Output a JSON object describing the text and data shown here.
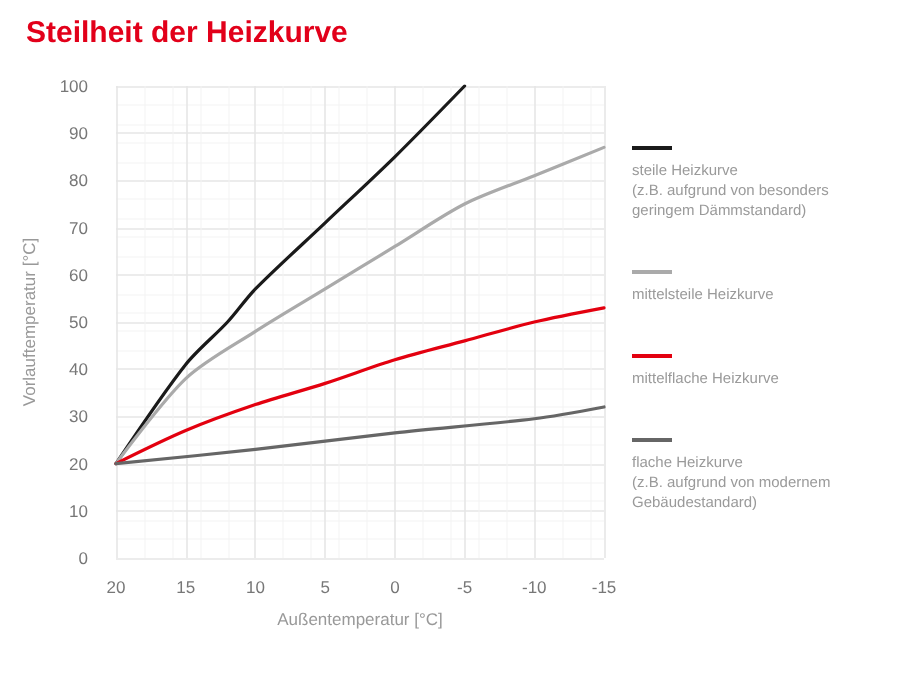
{
  "chart_data": {
    "type": "line",
    "title": "Steilheit der Heizkurve",
    "xlabel": "Außentemperatur [°C]",
    "ylabel": "Vorlauftemperatur [°C]",
    "xlim": [
      20,
      -15
    ],
    "xticks": [
      20,
      15,
      10,
      5,
      0,
      -5,
      -10,
      -15
    ],
    "ylim": [
      0,
      100
    ],
    "yticks": [
      0,
      10,
      20,
      30,
      40,
      50,
      60,
      70,
      80,
      90,
      100
    ],
    "grid": true,
    "legend": "right",
    "marker": "none",
    "line_style": "solid",
    "series": [
      {
        "name": "steile Heizkurve\n(z.B. aufgrund von besonders\ngeringem Dämmstandard)",
        "color": "#1a1a1a",
        "x": [
          20,
          15,
          12,
          10,
          5,
          0,
          -5
        ],
        "values": [
          20,
          41,
          50,
          57,
          71,
          85,
          100
        ]
      },
      {
        "name": "mittelsteile Heizkurve",
        "color": "#aaaaaa",
        "x": [
          20,
          15,
          10,
          5,
          0,
          -5,
          -10,
          -15
        ],
        "values": [
          20,
          38,
          48,
          57,
          66,
          75,
          81,
          87
        ]
      },
      {
        "name": "mittelflache Heizkurve",
        "color": "#e3000f",
        "x": [
          20,
          15,
          10,
          5,
          0,
          -5,
          -10,
          -15
        ],
        "values": [
          20,
          27,
          32.5,
          37,
          42,
          46,
          50,
          53
        ]
      },
      {
        "name": "flache Heizkurve\n(z.B. aufgrund von modernem\nGebäudestandard)",
        "color": "#666666",
        "x": [
          20,
          10,
          0,
          -10,
          -15
        ],
        "values": [
          20,
          23,
          26.5,
          29.5,
          32
        ]
      }
    ]
  }
}
